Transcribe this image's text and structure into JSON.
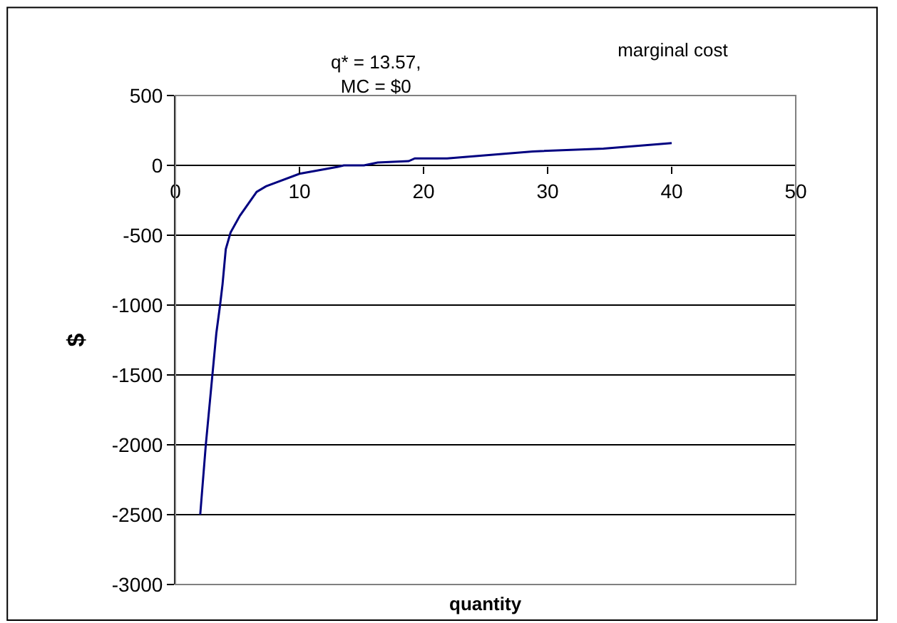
{
  "chart_data": {
    "type": "line",
    "title": "marginal cost",
    "xlabel": "quantity",
    "ylabel": "$",
    "x": [
      2.0,
      2.45,
      3.3,
      3.6,
      3.8,
      4.06,
      4.45,
      5.2,
      6.55,
      7.3,
      10,
      13.1,
      13.57,
      15.2,
      16.3,
      18.8,
      19.3,
      21.9,
      28.8,
      34.5,
      40
    ],
    "series": [
      {
        "color": "#000080",
        "values": [
          -2500,
          -2000,
          -1200,
          -1000,
          -850,
          -600,
          -480,
          -360,
          -190,
          -150,
          -60,
          -10,
          0,
          0,
          20,
          30,
          50,
          50,
          100,
          120,
          160
        ]
      }
    ],
    "annotations": [
      "q* = 13.57,\nMC = $0"
    ],
    "xlim": [
      0,
      50
    ],
    "xticks": [
      0,
      10,
      20,
      30,
      40,
      50
    ],
    "ylim": [
      -3000,
      500
    ],
    "yticks": [
      -3000,
      -2500,
      -2000,
      -1500,
      -1000,
      -500,
      0,
      500
    ],
    "grid": "y",
    "marker": "none",
    "line_style": "solid"
  }
}
